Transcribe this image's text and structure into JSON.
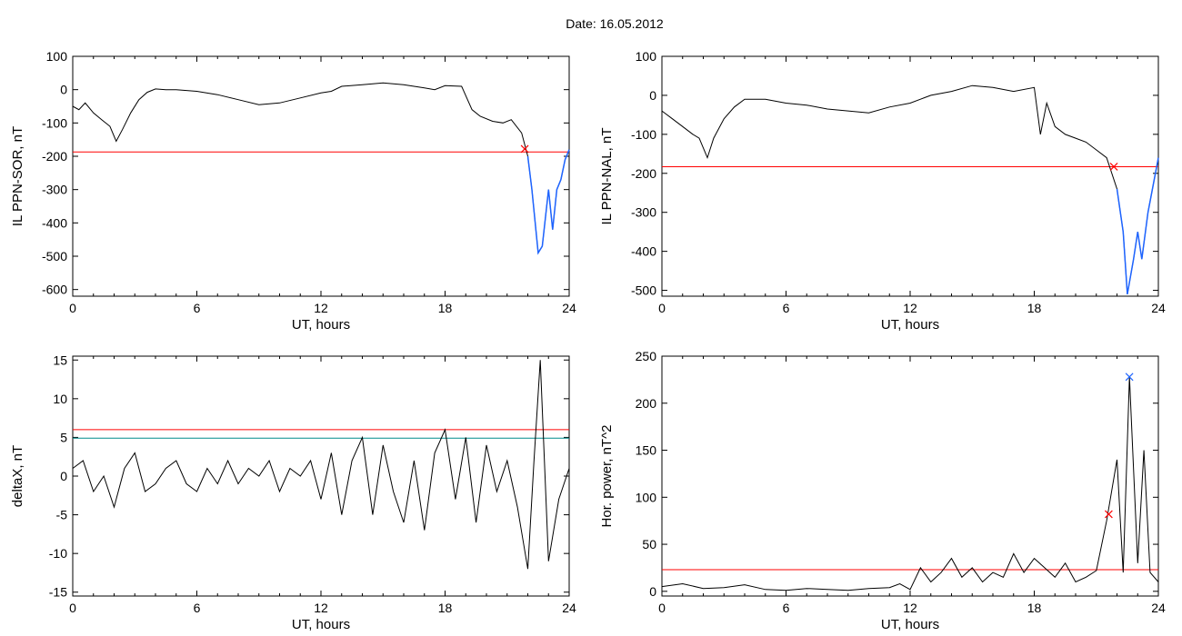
{
  "header": {
    "title": "Date:  16.05.2012"
  },
  "colors": {
    "threshold": "#ff0000",
    "secondary_threshold": "#008b8b",
    "highlight": "#1e64ff",
    "marker_red": "#ff0000",
    "marker_blue": "#1e64ff",
    "marker_green": "#00cc00"
  },
  "chart_data": [
    {
      "type": "line",
      "ylabel": "IL PPN-SOR, nT",
      "xlabel": "UT, hours",
      "xlim": [
        0,
        24
      ],
      "ylim": [
        -620,
        100
      ],
      "xticks": [
        0,
        6,
        12,
        18,
        24
      ],
      "yticks": [
        100,
        0,
        -100,
        -200,
        -300,
        -400,
        -500,
        -600
      ],
      "threshold": -187,
      "highlight_range": [
        21.8,
        24
      ],
      "markers": [
        {
          "x": 21.85,
          "y": -178,
          "color": "red"
        }
      ],
      "points": [
        [
          0,
          -50
        ],
        [
          0.3,
          -60
        ],
        [
          0.6,
          -40
        ],
        [
          1.0,
          -70
        ],
        [
          1.4,
          -90
        ],
        [
          1.8,
          -110
        ],
        [
          2.1,
          -155
        ],
        [
          2.4,
          -120
        ],
        [
          2.8,
          -70
        ],
        [
          3.2,
          -30
        ],
        [
          3.6,
          -8
        ],
        [
          4.0,
          2
        ],
        [
          4.5,
          0
        ],
        [
          5.0,
          0
        ],
        [
          6,
          -5
        ],
        [
          7,
          -15
        ],
        [
          8,
          -30
        ],
        [
          9,
          -45
        ],
        [
          10,
          -40
        ],
        [
          11,
          -25
        ],
        [
          12,
          -10
        ],
        [
          12.5,
          -5
        ],
        [
          13,
          10
        ],
        [
          14,
          15
        ],
        [
          15,
          20
        ],
        [
          16,
          15
        ],
        [
          17,
          5
        ],
        [
          17.5,
          0
        ],
        [
          18,
          12
        ],
        [
          18.8,
          10
        ],
        [
          19.3,
          -60
        ],
        [
          19.7,
          -80
        ],
        [
          20.3,
          -95
        ],
        [
          20.8,
          -100
        ],
        [
          21.2,
          -90
        ],
        [
          21.7,
          -130
        ],
        [
          22.0,
          -200
        ],
        [
          22.2,
          -300
        ],
        [
          22.5,
          -490
        ],
        [
          22.7,
          -470
        ],
        [
          23.0,
          -300
        ],
        [
          23.2,
          -420
        ],
        [
          23.4,
          -300
        ],
        [
          23.6,
          -270
        ],
        [
          23.8,
          -210
        ],
        [
          24,
          -180
        ]
      ]
    },
    {
      "type": "line",
      "ylabel": "IL PPN-NAL, nT",
      "xlabel": "UT, hours",
      "xlim": [
        0,
        24
      ],
      "ylim": [
        -515,
        100
      ],
      "xticks": [
        0,
        6,
        12,
        18,
        24
      ],
      "yticks": [
        100,
        0,
        -100,
        -200,
        -300,
        -400,
        -500
      ],
      "threshold": -183,
      "highlight_range": [
        21.8,
        24
      ],
      "markers": [
        {
          "x": 21.85,
          "y": -183,
          "color": "red"
        }
      ],
      "points": [
        [
          0,
          -40
        ],
        [
          0.5,
          -60
        ],
        [
          1.0,
          -80
        ],
        [
          1.5,
          -100
        ],
        [
          1.8,
          -110
        ],
        [
          2.2,
          -160
        ],
        [
          2.5,
          -110
        ],
        [
          3.0,
          -60
        ],
        [
          3.5,
          -30
        ],
        [
          4,
          -10
        ],
        [
          5,
          -10
        ],
        [
          6,
          -20
        ],
        [
          7,
          -25
        ],
        [
          8,
          -35
        ],
        [
          9,
          -40
        ],
        [
          10,
          -45
        ],
        [
          11,
          -30
        ],
        [
          12,
          -20
        ],
        [
          12.5,
          -10
        ],
        [
          13,
          0
        ],
        [
          14,
          10
        ],
        [
          15,
          25
        ],
        [
          16,
          20
        ],
        [
          17,
          10
        ],
        [
          18,
          20
        ],
        [
          18.3,
          -100
        ],
        [
          18.6,
          -20
        ],
        [
          19,
          -80
        ],
        [
          19.5,
          -100
        ],
        [
          20,
          -110
        ],
        [
          20.5,
          -120
        ],
        [
          21,
          -140
        ],
        [
          21.5,
          -160
        ],
        [
          22,
          -240
        ],
        [
          22.3,
          -350
        ],
        [
          22.5,
          -510
        ],
        [
          22.8,
          -420
        ],
        [
          23,
          -350
        ],
        [
          23.2,
          -420
        ],
        [
          23.5,
          -300
        ],
        [
          24,
          -160
        ]
      ]
    },
    {
      "type": "line",
      "ylabel": "deltaX, nT",
      "xlabel": "UT, hours",
      "xlim": [
        0,
        24
      ],
      "ylim": [
        -15.5,
        15.5
      ],
      "xticks": [
        0,
        6,
        12,
        18,
        24
      ],
      "yticks": [
        15,
        10,
        5,
        0,
        -5,
        -10,
        -15
      ],
      "threshold": 6,
      "secondary_threshold": 4.9,
      "points": [
        [
          0,
          1
        ],
        [
          0.5,
          2
        ],
        [
          1,
          -2
        ],
        [
          1.5,
          0
        ],
        [
          2,
          -4
        ],
        [
          2.5,
          1
        ],
        [
          3,
          3
        ],
        [
          3.5,
          -2
        ],
        [
          4,
          -1
        ],
        [
          4.5,
          1
        ],
        [
          5,
          2
        ],
        [
          5.5,
          -1
        ],
        [
          6,
          -2
        ],
        [
          6.5,
          1
        ],
        [
          7,
          -1
        ],
        [
          7.5,
          2
        ],
        [
          8,
          -1
        ],
        [
          8.5,
          1
        ],
        [
          9,
          0
        ],
        [
          9.5,
          2
        ],
        [
          10,
          -2
        ],
        [
          10.5,
          1
        ],
        [
          11,
          0
        ],
        [
          11.5,
          2
        ],
        [
          12,
          -3
        ],
        [
          12.5,
          3
        ],
        [
          13,
          -5
        ],
        [
          13.5,
          2
        ],
        [
          14,
          5
        ],
        [
          14.5,
          -5
        ],
        [
          15,
          4
        ],
        [
          15.5,
          -2
        ],
        [
          16,
          -6
        ],
        [
          16.5,
          2
        ],
        [
          17,
          -7
        ],
        [
          17.5,
          3
        ],
        [
          18,
          6
        ],
        [
          18.5,
          -3
        ],
        [
          19,
          5
        ],
        [
          19.5,
          -6
        ],
        [
          20,
          4
        ],
        [
          20.5,
          -2
        ],
        [
          21,
          2
        ],
        [
          21.5,
          -4
        ],
        [
          22,
          -12
        ],
        [
          22.3,
          2
        ],
        [
          22.6,
          15
        ],
        [
          23,
          -11
        ],
        [
          23.5,
          -3
        ],
        [
          24,
          1
        ]
      ]
    },
    {
      "type": "line",
      "ylabel": "Hor. power, nT^2",
      "xlabel": "UT, hours",
      "xlim": [
        0,
        24
      ],
      "ylim": [
        -5,
        250
      ],
      "xticks": [
        0,
        6,
        12,
        18,
        24
      ],
      "yticks": [
        250,
        200,
        150,
        100,
        50,
        0
      ],
      "threshold": 23,
      "markers": [
        {
          "x": 21.6,
          "y": 82,
          "color": "red"
        },
        {
          "x": 22.6,
          "y": 228,
          "color": "blue"
        }
      ],
      "points": [
        [
          0,
          5
        ],
        [
          1,
          8
        ],
        [
          2,
          3
        ],
        [
          3,
          4
        ],
        [
          4,
          7
        ],
        [
          5,
          2
        ],
        [
          6,
          1
        ],
        [
          7,
          3
        ],
        [
          8,
          2
        ],
        [
          9,
          1
        ],
        [
          10,
          3
        ],
        [
          11,
          4
        ],
        [
          11.5,
          8
        ],
        [
          12,
          2
        ],
        [
          12.5,
          25
        ],
        [
          13,
          10
        ],
        [
          13.5,
          20
        ],
        [
          14,
          35
        ],
        [
          14.5,
          15
        ],
        [
          15,
          25
        ],
        [
          15.5,
          10
        ],
        [
          16,
          20
        ],
        [
          16.5,
          15
        ],
        [
          17,
          40
        ],
        [
          17.5,
          20
        ],
        [
          18,
          35
        ],
        [
          18.5,
          25
        ],
        [
          19,
          15
        ],
        [
          19.5,
          30
        ],
        [
          20,
          10
        ],
        [
          20.5,
          15
        ],
        [
          21,
          22
        ],
        [
          21.5,
          75
        ],
        [
          22,
          140
        ],
        [
          22.3,
          20
        ],
        [
          22.6,
          228
        ],
        [
          23,
          30
        ],
        [
          23.3,
          150
        ],
        [
          23.6,
          20
        ],
        [
          24,
          10
        ]
      ]
    }
  ]
}
